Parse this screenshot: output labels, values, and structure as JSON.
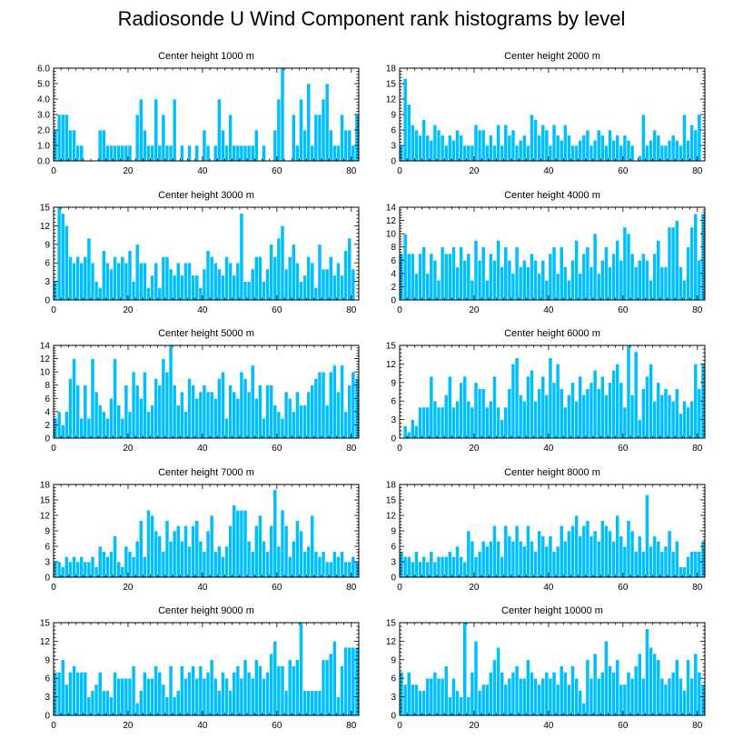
{
  "figure": {
    "title": "Radiosonde U Wind Component rank histograms by level",
    "bar_color": "#00bfff",
    "bar_edge_color": "#ffffff",
    "axis_color": "#000000"
  },
  "chart_data": [
    {
      "type": "bar",
      "title": "Center height 1000 m",
      "xlim": [
        0,
        82
      ],
      "ylim": [
        0,
        6
      ],
      "xticks": [
        0,
        20,
        40,
        60,
        80
      ],
      "xtick_labels": [
        "0",
        "20",
        "40",
        "60",
        "80"
      ],
      "yticks": [
        0,
        1,
        2,
        3,
        4,
        5,
        6
      ],
      "ytick_labels": [
        "0.0",
        "1.0",
        "2.0",
        "3.0",
        "4.0",
        "5.0",
        "6.0"
      ],
      "values": [
        2,
        3,
        3,
        3,
        2,
        2,
        1,
        1,
        0,
        0,
        0,
        0,
        2,
        2,
        1,
        1,
        1,
        1,
        1,
        1,
        1,
        0,
        3,
        4,
        2,
        1,
        1,
        4,
        1,
        3,
        1,
        1,
        4,
        0,
        1,
        0,
        1,
        0,
        1,
        0,
        2,
        1,
        0,
        1,
        4,
        2,
        1,
        3,
        1,
        1,
        1,
        1,
        1,
        1,
        2,
        0,
        1,
        0,
        0,
        2,
        4,
        6,
        0,
        0,
        3,
        1,
        4,
        2,
        5,
        1,
        3,
        3,
        4,
        5,
        2,
        1,
        1,
        3,
        2,
        2,
        1,
        3
      ]
    },
    {
      "type": "bar",
      "title": "Center height 2000 m",
      "xlim": [
        0,
        82
      ],
      "ylim": [
        0,
        18
      ],
      "xticks": [
        0,
        20,
        40,
        60,
        80
      ],
      "xtick_labels": [
        "0",
        "20",
        "40",
        "60",
        "80"
      ],
      "yticks": [
        0,
        3,
        6,
        9,
        12,
        15,
        18
      ],
      "ytick_labels": [
        "0",
        "3",
        "6",
        "9",
        "12",
        "15",
        "18"
      ],
      "values": [
        3,
        16,
        11,
        7,
        6,
        5,
        8,
        5,
        4,
        7,
        6,
        5,
        3,
        5,
        4,
        6,
        5,
        3,
        3,
        3,
        7,
        6,
        6,
        3,
        5,
        3,
        7,
        3,
        7,
        5,
        6,
        3,
        4,
        5,
        3,
        9,
        8,
        5,
        7,
        6,
        3,
        7,
        5,
        4,
        7,
        5,
        3,
        3,
        4,
        5,
        6,
        3,
        4,
        6,
        5,
        3,
        6,
        4,
        5,
        3,
        5,
        4,
        3,
        0,
        1,
        9,
        3,
        4,
        6,
        5,
        3,
        3,
        4,
        5,
        4,
        3,
        9,
        4,
        7,
        6,
        9
      ]
    },
    {
      "type": "bar",
      "title": "Center height 3000 m",
      "xlim": [
        0,
        82
      ],
      "ylim": [
        0,
        15
      ],
      "xticks": [
        0,
        20,
        40,
        60,
        80
      ],
      "xtick_labels": [
        "0",
        "20",
        "40",
        "60",
        "80"
      ],
      "yticks": [
        0,
        3,
        6,
        9,
        12,
        15
      ],
      "ytick_labels": [
        "0",
        "3",
        "6",
        "9",
        "12",
        "15"
      ],
      "values": [
        3,
        15,
        14,
        12,
        7,
        6,
        7,
        6,
        7,
        10,
        6,
        3,
        2,
        8,
        6,
        5,
        7,
        6,
        7,
        6,
        8,
        3,
        9,
        6,
        6,
        2,
        4,
        6,
        2,
        7,
        7,
        5,
        4,
        6,
        4,
        6,
        6,
        4,
        4,
        2,
        5,
        8,
        7,
        6,
        5,
        4,
        7,
        6,
        4,
        6,
        14,
        3,
        3,
        5,
        7,
        7,
        3,
        5,
        9,
        7,
        10,
        12,
        5,
        7,
        9,
        6,
        3,
        4,
        7,
        6,
        2,
        9,
        5,
        5,
        7,
        4,
        6,
        4,
        8,
        10,
        5
      ]
    },
    {
      "type": "bar",
      "title": "Center height 4000 m",
      "xlim": [
        0,
        82
      ],
      "ylim": [
        0,
        14
      ],
      "xticks": [
        0,
        20,
        40,
        60,
        80
      ],
      "xtick_labels": [
        "0",
        "20",
        "40",
        "60",
        "80"
      ],
      "yticks": [
        0,
        2,
        4,
        6,
        8,
        10,
        12,
        14
      ],
      "ytick_labels": [
        "0",
        "2",
        "4",
        "6",
        "8",
        "10",
        "12",
        "14"
      ],
      "values": [
        7,
        10,
        7,
        7,
        4,
        7,
        8,
        4,
        7,
        6,
        3,
        8,
        7,
        7,
        8,
        5,
        8,
        6,
        7,
        3,
        9,
        6,
        8,
        3,
        7,
        6,
        9,
        5,
        8,
        6,
        4,
        8,
        5,
        6,
        5,
        7,
        6,
        4,
        6,
        3,
        7,
        8,
        4,
        8,
        5,
        3,
        6,
        9,
        4,
        7,
        8,
        5,
        10,
        4,
        6,
        8,
        5,
        7,
        9,
        6,
        11,
        10,
        7,
        5,
        6,
        7,
        6,
        3,
        7,
        9,
        5,
        5,
        11,
        11,
        12,
        5,
        3,
        8,
        11,
        13,
        6,
        13
      ]
    },
    {
      "type": "bar",
      "title": "Center height 5000 m",
      "xlim": [
        0,
        82
      ],
      "ylim": [
        0,
        14
      ],
      "xticks": [
        0,
        20,
        40,
        60,
        80
      ],
      "xtick_labels": [
        "0",
        "20",
        "40",
        "60",
        "80"
      ],
      "yticks": [
        0,
        2,
        4,
        6,
        8,
        10,
        12,
        14
      ],
      "ytick_labels": [
        "0",
        "2",
        "4",
        "6",
        "8",
        "10",
        "12",
        "14"
      ],
      "values": [
        3,
        4,
        2,
        4,
        9,
        12,
        8,
        3,
        8,
        3,
        12,
        7,
        5,
        4,
        3,
        6,
        12,
        5,
        3,
        8,
        4,
        10,
        8,
        6,
        10,
        4,
        5,
        9,
        8,
        12,
        10,
        14,
        8,
        5,
        7,
        4,
        9,
        8,
        6,
        7,
        8,
        7,
        7,
        6,
        9,
        10,
        3,
        8,
        7,
        6,
        10,
        9,
        7,
        11,
        6,
        8,
        3,
        8,
        8,
        5,
        4,
        3,
        7,
        6,
        4,
        7,
        5,
        5,
        7,
        8,
        9,
        10,
        10,
        5,
        10,
        11,
        7,
        11,
        4,
        8,
        10,
        9
      ]
    },
    {
      "type": "bar",
      "title": "Center height 6000 m",
      "xlim": [
        0,
        82
      ],
      "ylim": [
        0,
        15
      ],
      "xticks": [
        0,
        20,
        40,
        60,
        80
      ],
      "xtick_labels": [
        "0",
        "20",
        "40",
        "60",
        "80"
      ],
      "yticks": [
        0,
        3,
        6,
        9,
        12,
        15
      ],
      "ytick_labels": [
        "0",
        "3",
        "6",
        "9",
        "12",
        "15"
      ],
      "values": [
        0,
        2,
        1,
        3,
        2,
        5,
        5,
        5,
        10,
        6,
        5,
        5,
        7,
        10,
        5,
        6,
        9,
        10,
        6,
        5,
        9,
        8,
        8,
        5,
        6,
        10,
        5,
        3,
        5,
        8,
        12,
        13,
        7,
        6,
        10,
        11,
        6,
        8,
        10,
        7,
        13,
        9,
        12,
        8,
        5,
        7,
        9,
        6,
        10,
        7,
        8,
        9,
        11,
        8,
        10,
        7,
        9,
        11,
        12,
        9,
        5,
        15,
        7,
        14,
        3,
        8,
        10,
        12,
        6,
        9,
        7,
        8,
        7,
        6,
        8,
        4,
        6,
        5,
        6,
        12,
        8,
        12
      ]
    },
    {
      "type": "bar",
      "title": "Center height 7000 m",
      "xlim": [
        0,
        82
      ],
      "ylim": [
        0,
        18
      ],
      "xticks": [
        0,
        20,
        40,
        60,
        80
      ],
      "xtick_labels": [
        "0",
        "20",
        "40",
        "60",
        "80"
      ],
      "yticks": [
        0,
        3,
        6,
        9,
        12,
        15,
        18
      ],
      "ytick_labels": [
        "0",
        "3",
        "6",
        "9",
        "12",
        "15",
        "18"
      ],
      "values": [
        3,
        3,
        2,
        4,
        3,
        4,
        3,
        4,
        3,
        3,
        4,
        2,
        6,
        5,
        4,
        5,
        8,
        3,
        2,
        6,
        5,
        4,
        7,
        11,
        4,
        13,
        12,
        9,
        8,
        5,
        11,
        7,
        9,
        10,
        7,
        10,
        6,
        10,
        11,
        7,
        5,
        9,
        12,
        5,
        6,
        4,
        6,
        10,
        14,
        13,
        13,
        13,
        7,
        5,
        10,
        12,
        7,
        5,
        10,
        17,
        6,
        13,
        10,
        4,
        7,
        11,
        9,
        5,
        6,
        12,
        5,
        4,
        5,
        3,
        3,
        5,
        4,
        5,
        3,
        3,
        4,
        3
      ]
    },
    {
      "type": "bar",
      "title": "Center height 8000 m",
      "xlim": [
        0,
        82
      ],
      "ylim": [
        0,
        18
      ],
      "xticks": [
        0,
        20,
        40,
        60,
        80
      ],
      "xtick_labels": [
        "0",
        "20",
        "40",
        "60",
        "80"
      ],
      "yticks": [
        0,
        3,
        6,
        9,
        12,
        15,
        18
      ],
      "ytick_labels": [
        "0",
        "3",
        "6",
        "9",
        "12",
        "15",
        "18"
      ],
      "values": [
        5,
        4,
        4,
        3,
        5,
        3,
        4,
        3,
        5,
        3,
        4,
        4,
        4,
        5,
        4,
        6,
        4,
        3,
        9,
        7,
        4,
        5,
        7,
        6,
        7,
        10,
        7,
        4,
        10,
        8,
        7,
        10,
        7,
        6,
        10,
        7,
        5,
        9,
        8,
        6,
        8,
        5,
        6,
        10,
        7,
        9,
        10,
        12,
        8,
        10,
        11,
        8,
        9,
        7,
        11,
        10,
        9,
        7,
        12,
        8,
        6,
        11,
        9,
        5,
        8,
        5,
        16,
        6,
        8,
        7,
        5,
        6,
        9,
        5,
        7,
        2,
        2,
        4,
        5,
        5,
        5,
        7
      ]
    },
    {
      "type": "bar",
      "title": "Center height 9000 m",
      "xlim": [
        0,
        82
      ],
      "ylim": [
        0,
        15
      ],
      "xticks": [
        0,
        20,
        40,
        60,
        80
      ],
      "xtick_labels": [
        "0",
        "20",
        "40",
        "60",
        "80"
      ],
      "yticks": [
        0,
        3,
        6,
        9,
        12,
        15
      ],
      "ytick_labels": [
        "0",
        "3",
        "6",
        "9",
        "12",
        "15"
      ],
      "values": [
        7,
        7,
        9,
        5,
        7,
        8,
        7,
        7,
        7,
        3,
        4,
        5,
        7,
        4,
        4,
        3,
        7,
        6,
        6,
        6,
        6,
        8,
        2,
        4,
        7,
        6,
        6,
        8,
        7,
        5,
        3,
        8,
        3,
        4,
        8,
        6,
        7,
        8,
        6,
        8,
        6,
        7,
        9,
        6,
        4,
        7,
        6,
        4,
        7,
        8,
        6,
        9,
        7,
        6,
        9,
        8,
        6,
        7,
        10,
        12,
        8,
        8,
        4,
        9,
        8,
        9,
        15,
        4,
        4,
        4,
        4,
        4,
        9,
        9,
        10,
        12,
        3,
        8,
        11,
        11,
        11,
        11
      ]
    },
    {
      "type": "bar",
      "title": "Center height 10000 m",
      "xlim": [
        0,
        82
      ],
      "ylim": [
        0,
        15
      ],
      "xticks": [
        0,
        20,
        40,
        60,
        80
      ],
      "xtick_labels": [
        "0",
        "20",
        "40",
        "60",
        "80"
      ],
      "yticks": [
        0,
        3,
        6,
        9,
        12,
        15
      ],
      "ytick_labels": [
        "0",
        "3",
        "6",
        "9",
        "12",
        "15"
      ],
      "values": [
        7,
        5,
        7,
        5,
        5,
        4,
        4,
        6,
        6,
        7,
        6,
        6,
        8,
        3,
        6,
        4,
        3,
        15,
        3,
        7,
        12,
        4,
        5,
        5,
        7,
        9,
        11,
        7,
        5,
        6,
        7,
        8,
        6,
        6,
        9,
        7,
        6,
        5,
        6,
        7,
        6,
        7,
        5,
        8,
        7,
        5,
        8,
        6,
        4,
        2,
        9,
        6,
        10,
        6,
        7,
        12,
        8,
        7,
        9,
        5,
        5,
        7,
        6,
        8,
        10,
        6,
        14,
        11,
        10,
        9,
        6,
        5,
        6,
        7,
        9,
        6,
        4,
        9,
        6,
        10,
        7,
        5
      ]
    }
  ]
}
